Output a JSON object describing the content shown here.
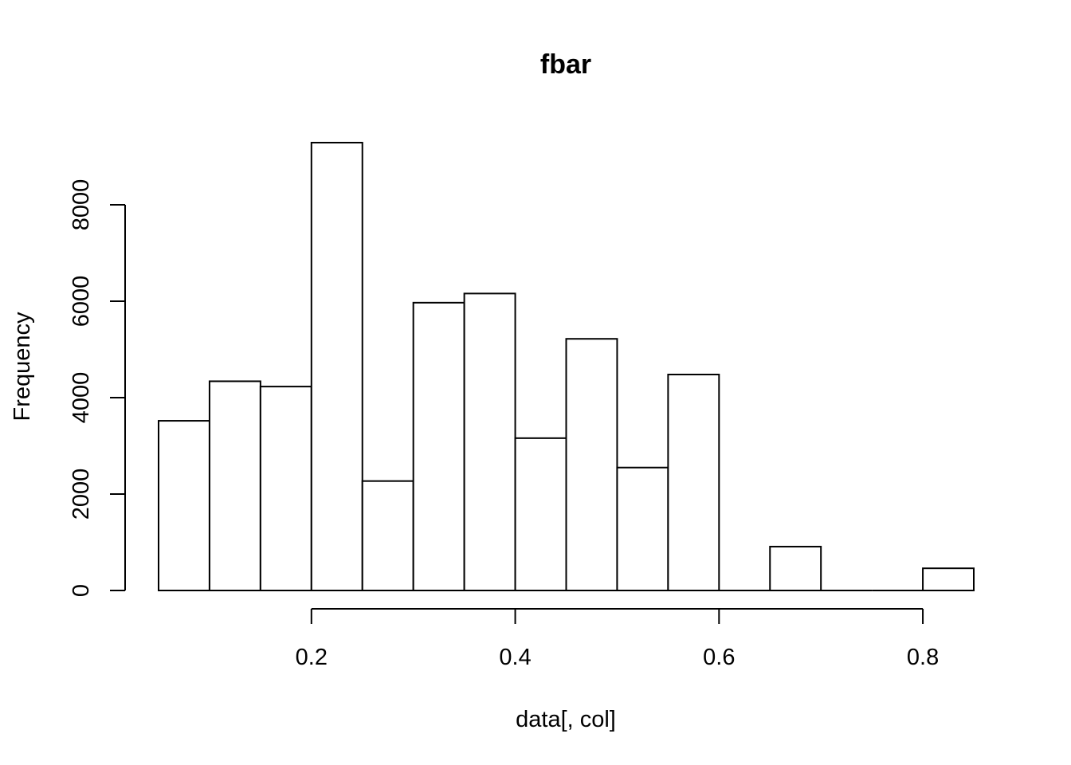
{
  "chart_data": {
    "type": "bar",
    "subtype": "histogram",
    "title": "fbar",
    "xlabel": "data[, col]",
    "ylabel": "Frequency",
    "bins": [
      {
        "start": 0.05,
        "end": 0.1,
        "count": 3520
      },
      {
        "start": 0.1,
        "end": 0.15,
        "count": 4340
      },
      {
        "start": 0.15,
        "end": 0.2,
        "count": 4230
      },
      {
        "start": 0.2,
        "end": 0.25,
        "count": 9290
      },
      {
        "start": 0.25,
        "end": 0.3,
        "count": 2270
      },
      {
        "start": 0.3,
        "end": 0.35,
        "count": 5970
      },
      {
        "start": 0.35,
        "end": 0.4,
        "count": 6160
      },
      {
        "start": 0.4,
        "end": 0.45,
        "count": 3160
      },
      {
        "start": 0.45,
        "end": 0.5,
        "count": 5220
      },
      {
        "start": 0.5,
        "end": 0.55,
        "count": 2550
      },
      {
        "start": 0.55,
        "end": 0.6,
        "count": 4480
      },
      {
        "start": 0.6,
        "end": 0.65,
        "count": 0
      },
      {
        "start": 0.65,
        "end": 0.7,
        "count": 910
      },
      {
        "start": 0.7,
        "end": 0.75,
        "count": 0
      },
      {
        "start": 0.75,
        "end": 0.8,
        "count": 0
      },
      {
        "start": 0.8,
        "end": 0.85,
        "count": 460
      }
    ],
    "xlim": [
      0.05,
      0.85
    ],
    "ylim": [
      0,
      9290
    ],
    "x_ticks": [
      {
        "value": 0.2,
        "label": "0.2"
      },
      {
        "value": 0.4,
        "label": "0.4"
      },
      {
        "value": 0.6,
        "label": "0.6"
      },
      {
        "value": 0.8,
        "label": "0.8"
      }
    ],
    "y_ticks": [
      {
        "value": 0,
        "label": "0"
      },
      {
        "value": 2000,
        "label": "2000"
      },
      {
        "value": 4000,
        "label": "4000"
      },
      {
        "value": 6000,
        "label": "6000"
      },
      {
        "value": 8000,
        "label": "8000"
      }
    ],
    "grid": false,
    "colors": {
      "bar_fill": "#ffffff",
      "bar_stroke": "#000000"
    }
  }
}
